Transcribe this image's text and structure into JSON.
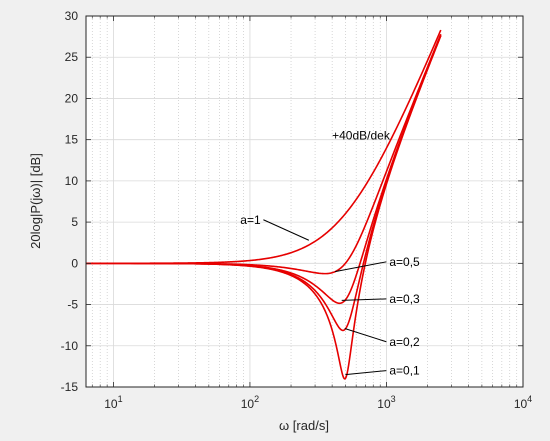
{
  "chart_data": {
    "type": "line",
    "xscale": "log",
    "xlim": [
      6.3,
      10000
    ],
    "ylim": [
      -15,
      30
    ],
    "xlabel": "ω [rad/s]",
    "ylabel": "20log|P(jω)| [dB]",
    "grid": true,
    "xticks": [
      {
        "value": 10,
        "base": "10",
        "exp": "1"
      },
      {
        "value": 100,
        "base": "10",
        "exp": "2"
      },
      {
        "value": 1000,
        "base": "10",
        "exp": "3"
      },
      {
        "value": 10000,
        "base": "10",
        "exp": "4"
      }
    ],
    "yticks": [
      -15,
      -10,
      -5,
      0,
      5,
      10,
      15,
      20,
      25,
      30
    ],
    "line_color": "#e60000",
    "series": [
      {
        "name": "a=1",
        "zeta": 1.0
      },
      {
        "name": "a=0,5",
        "zeta": 0.5
      },
      {
        "name": "a=0,3",
        "zeta": 0.3
      },
      {
        "name": "a=0,2",
        "zeta": 0.2
      },
      {
        "name": "a=0,1",
        "zeta": 0.1
      }
    ],
    "model": {
      "w0": 500,
      "w_start": 6.3,
      "w_end": 2500
    },
    "annotations": [
      {
        "text": "+40dB/dek",
        "x": 400,
        "y": 15
      },
      {
        "text": "a=1",
        "x": 85,
        "y": 4.8,
        "target": [
          270,
          2.8
        ]
      },
      {
        "text": "a=0,5",
        "x": 1050,
        "y": -0.3,
        "target": [
          420,
          -1.0
        ]
      },
      {
        "text": "a=0,3",
        "x": 1050,
        "y": -4.8,
        "target": [
          470,
          -4.5
        ]
      },
      {
        "text": "a=0,2",
        "x": 1050,
        "y": -10.0,
        "target": [
          495,
          -7.9
        ]
      },
      {
        "text": "a=0,1",
        "x": 1050,
        "y": -13.5,
        "target": [
          500,
          -13.5
        ]
      }
    ]
  }
}
